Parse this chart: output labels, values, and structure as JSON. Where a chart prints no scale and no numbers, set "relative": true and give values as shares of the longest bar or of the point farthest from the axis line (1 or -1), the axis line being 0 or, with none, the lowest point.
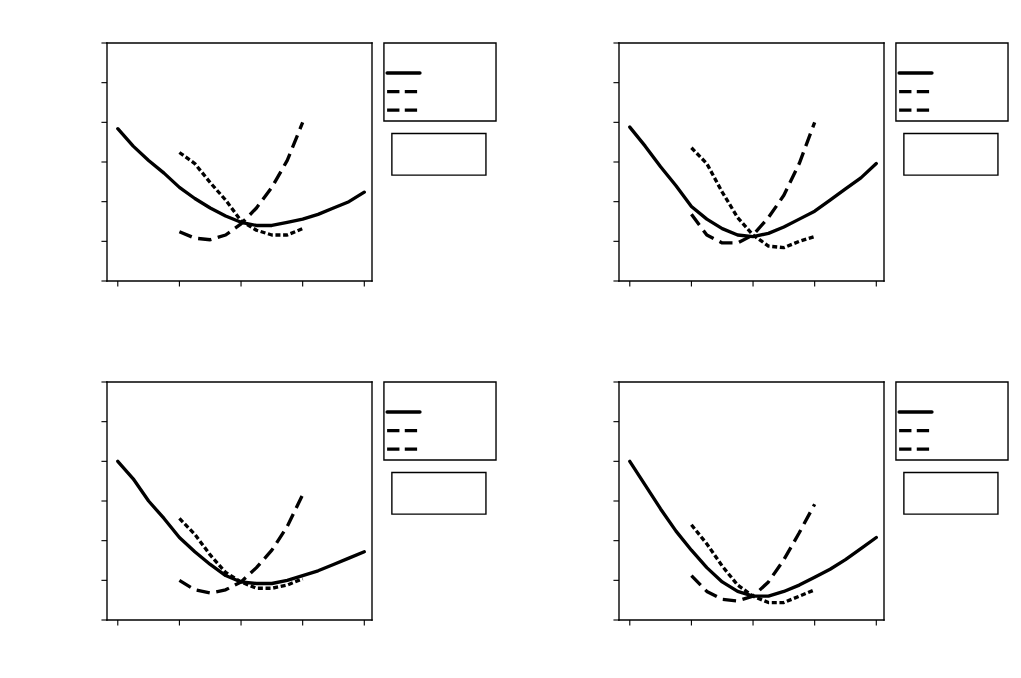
{
  "chart_data": [
    {
      "type": "line",
      "relative": true,
      "categories": [
        null,
        null,
        null,
        null,
        null,
        null,
        null,
        null,
        null,
        null,
        null,
        null,
        null,
        null,
        null,
        null,
        null
      ],
      "series": [
        {
          "color": "#000000",
          "line_style": "solid",
          "values": [
            0.96,
            0.85,
            0.76,
            0.68,
            0.59,
            0.52,
            0.46,
            0.41,
            0.37,
            0.35,
            0.35,
            0.37,
            0.39,
            0.42,
            0.46,
            0.5,
            0.56
          ]
        },
        {
          "color": "#000000",
          "line_style": "dashed",
          "values": [
            null,
            null,
            null,
            null,
            0.31,
            0.27,
            0.26,
            0.29,
            0.36,
            0.46,
            0.59,
            0.76,
            1,
            null,
            null,
            null,
            null
          ]
        },
        {
          "color": "#000000",
          "line_style": "dotted",
          "values": [
            null,
            null,
            null,
            null,
            0.81,
            0.74,
            0.62,
            0.51,
            0.38,
            0.32,
            0.29,
            0.29,
            0.33,
            null,
            null,
            null,
            null
          ]
        }
      ]
    },
    {
      "type": "line",
      "relative": true,
      "categories": [
        null,
        null,
        null,
        null,
        null,
        null,
        null,
        null,
        null,
        null,
        null,
        null,
        null,
        null,
        null,
        null,
        null
      ],
      "series": [
        {
          "color": "#000000",
          "line_style": "solid",
          "values": [
            0.97,
            0.85,
            0.72,
            0.6,
            0.47,
            0.39,
            0.33,
            0.29,
            0.28,
            0.3,
            0.34,
            0.39,
            0.44,
            0.51,
            0.58,
            0.65,
            0.74
          ]
        },
        {
          "color": "#000000",
          "line_style": "dashed",
          "values": [
            null,
            null,
            null,
            null,
            0.42,
            0.29,
            0.24,
            0.24,
            0.29,
            0.4,
            0.54,
            0.74,
            1,
            null,
            null,
            null,
            null
          ]
        },
        {
          "color": "#000000",
          "line_style": "dotted",
          "values": [
            null,
            null,
            null,
            null,
            0.84,
            0.74,
            0.56,
            0.4,
            0.29,
            0.22,
            0.21,
            0.25,
            0.28,
            null,
            null,
            null,
            null
          ]
        }
      ]
    },
    {
      "type": "line",
      "relative": true,
      "categories": [
        null,
        null,
        null,
        null,
        null,
        null,
        null,
        null,
        null,
        null,
        null,
        null,
        null,
        null,
        null,
        null,
        null
      ],
      "series": [
        {
          "color": "#000000",
          "line_style": "solid",
          "values": [
            1,
            0.89,
            0.75,
            0.64,
            0.52,
            0.43,
            0.35,
            0.28,
            0.24,
            0.23,
            0.23,
            0.25,
            0.28,
            0.31,
            0.35,
            0.39,
            0.43
          ]
        },
        {
          "color": "#000000",
          "line_style": "dashed",
          "values": [
            null,
            null,
            null,
            null,
            0.25,
            0.19,
            0.17,
            0.19,
            0.24,
            0.33,
            0.44,
            0.59,
            0.79,
            null,
            null,
            null,
            null
          ]
        },
        {
          "color": "#000000",
          "line_style": "dotted",
          "values": [
            null,
            null,
            null,
            null,
            0.64,
            0.54,
            0.41,
            0.3,
            0.24,
            0.2,
            0.2,
            0.22,
            0.26,
            null,
            null,
            null,
            null
          ]
        }
      ]
    },
    {
      "type": "line",
      "relative": true,
      "categories": [
        null,
        null,
        null,
        null,
        null,
        null,
        null,
        null,
        null,
        null,
        null,
        null,
        null,
        null,
        null,
        null,
        null
      ],
      "series": [
        {
          "color": "#000000",
          "line_style": "solid",
          "values": [
            1,
            0.85,
            0.7,
            0.56,
            0.44,
            0.33,
            0.24,
            0.18,
            0.15,
            0.15,
            0.18,
            0.22,
            0.27,
            0.32,
            0.38,
            0.45,
            0.52
          ]
        },
        {
          "color": "#000000",
          "line_style": "dashed",
          "values": [
            null,
            null,
            null,
            null,
            0.28,
            0.18,
            0.13,
            0.12,
            0.15,
            0.24,
            0.38,
            0.55,
            0.73,
            null,
            null,
            null,
            null
          ]
        },
        {
          "color": "#000000",
          "line_style": "dotted",
          "values": [
            null,
            null,
            null,
            null,
            0.6,
            0.48,
            0.34,
            0.22,
            0.15,
            0.11,
            0.11,
            0.15,
            0.19,
            null,
            null,
            null,
            null
          ]
        }
      ]
    }
  ]
}
